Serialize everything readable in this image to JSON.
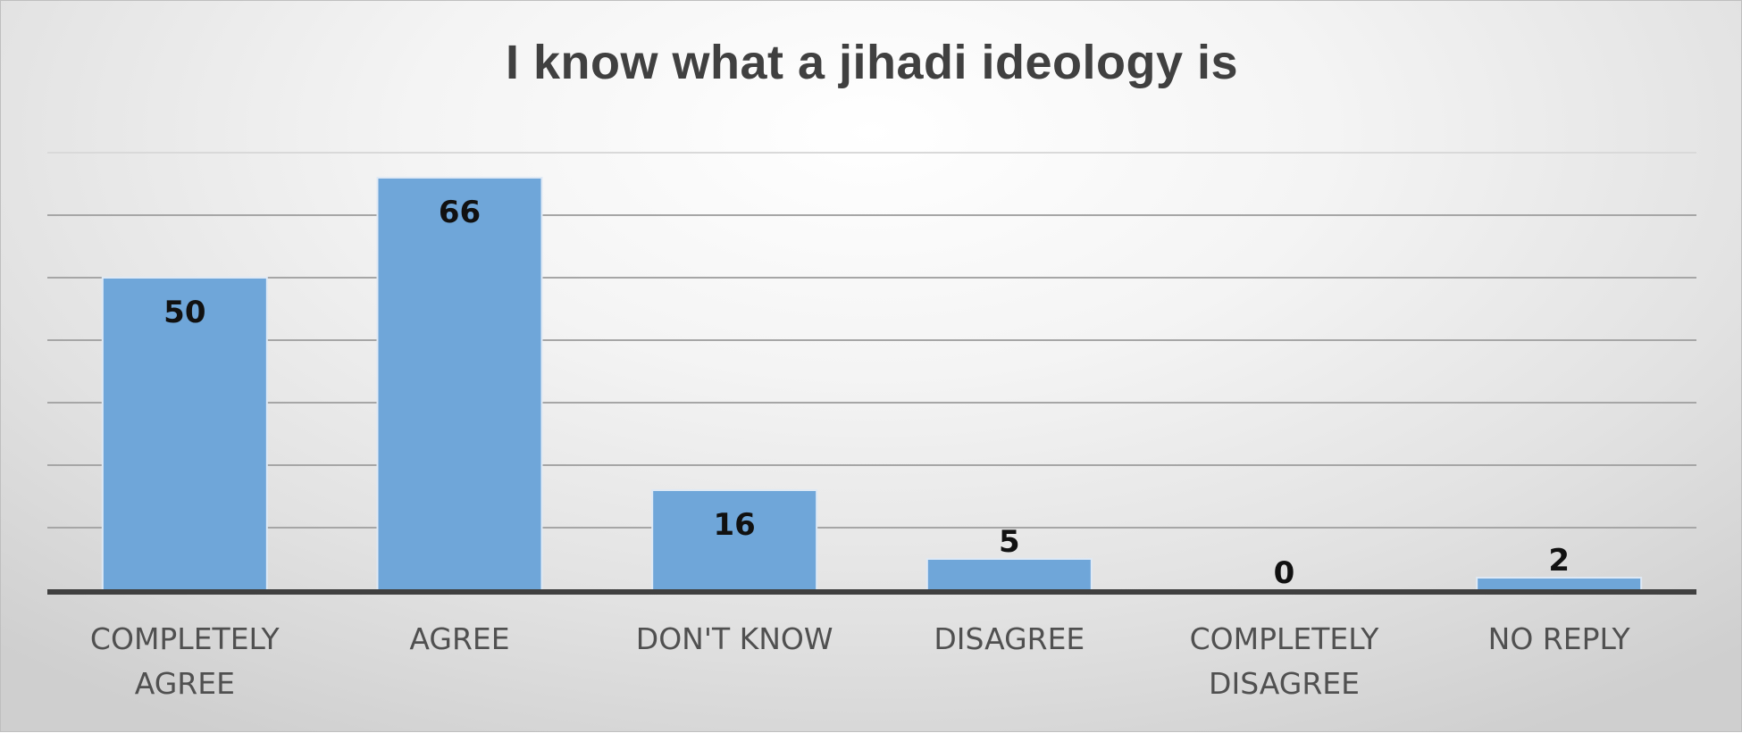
{
  "chart_data": {
    "type": "bar",
    "title": "I know what a jihadi ideology is",
    "categories": [
      [
        "COMPLETELY",
        "AGREE"
      ],
      [
        "AGREE"
      ],
      [
        "DON'T KNOW"
      ],
      [
        "DISAGREE"
      ],
      [
        "COMPLETELY",
        "DISAGREE"
      ],
      [
        "NO REPLY"
      ]
    ],
    "values": [
      50,
      66,
      16,
      5,
      0,
      2
    ],
    "ylim": [
      0,
      70
    ],
    "grid": true,
    "bar_color": "#6fa6d9",
    "bar_edge_color": "#dfe9f5",
    "axis_color": "#404040",
    "grid_color": "#a6a6a6"
  }
}
